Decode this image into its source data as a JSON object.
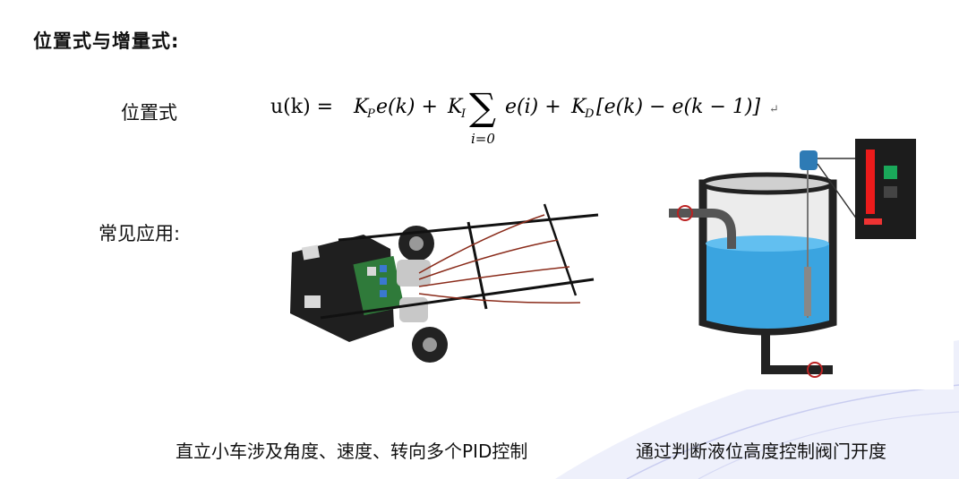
{
  "heading": "位置式与增量式:",
  "labels": {
    "positional": "位置式",
    "applications": "常见应用:"
  },
  "formula": {
    "lhs": "u(k) = ",
    "kp": "K",
    "kp_sub": "P",
    "term1": "e(k) + ",
    "ki": "K",
    "ki_sub": "I",
    "sum_symbol": "∑",
    "sum_index": "i=0",
    "term2": "e(i) + ",
    "kd": "K",
    "kd_sub": "D",
    "term3": "[e(k) − e(k − 1)]",
    "return_mark": "↵"
  },
  "captions": {
    "car": "直立小车涉及角度、速度、转向多个PID控制",
    "tank": "通过判断液位高度控制阀门开度"
  },
  "colors": {
    "water": "#3aa4e0",
    "wave": "#c9cdf0"
  }
}
